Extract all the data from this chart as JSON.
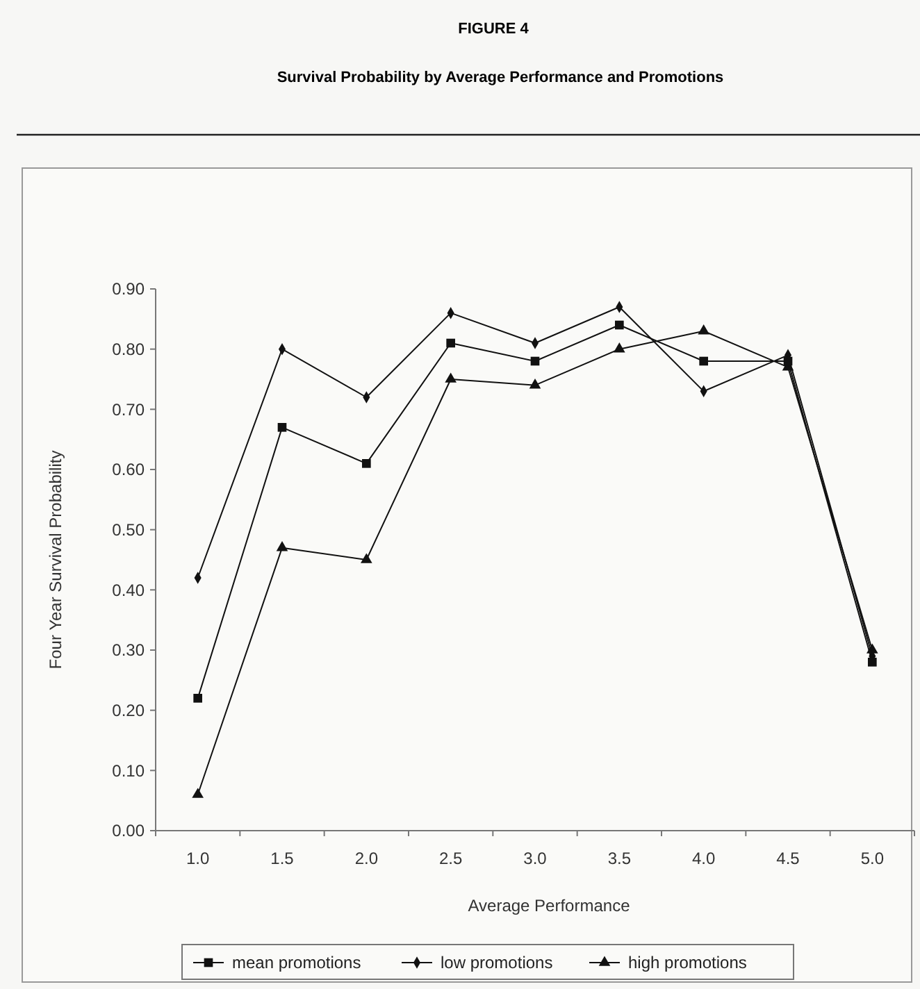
{
  "chart_data": {
    "type": "line",
    "title": "FIGURE 4",
    "subtitle": "Survival Probability by Average Performance and Promotions",
    "xlabel": "Average Performance",
    "ylabel": "Four Year Survival Probability",
    "categories": [
      "1.0",
      "1.5",
      "2.0",
      "2.5",
      "3.0",
      "3.5",
      "4.0",
      "4.5",
      "5.0"
    ],
    "ylim": [
      0,
      0.9
    ],
    "yticks": [
      {
        "value": 0,
        "label": "0.00"
      },
      {
        "value": 0.1,
        "label": "0.10"
      },
      {
        "value": 0.2,
        "label": "0.20"
      },
      {
        "value": 0.3,
        "label": "0.30"
      },
      {
        "value": 0.4,
        "label": "0.40"
      },
      {
        "value": 0.5,
        "label": "0.50"
      },
      {
        "value": 0.6,
        "label": "0.60"
      },
      {
        "value": 0.7,
        "label": "0.70"
      },
      {
        "value": 0.8,
        "label": "0.80"
      },
      {
        "value": 0.9,
        "label": "0.90"
      }
    ],
    "grid": false,
    "legend": "bottom",
    "line_style": "solid",
    "series": [
      {
        "name": "mean promotions",
        "color": "#111111",
        "marker": "square",
        "values": [
          0.22,
          0.67,
          0.61,
          0.81,
          0.78,
          0.84,
          0.78,
          0.78,
          0.28
        ]
      },
      {
        "name": "low promotions",
        "color": "#111111",
        "marker": "diamond",
        "values": [
          0.42,
          0.8,
          0.72,
          0.86,
          0.81,
          0.87,
          0.73,
          0.79,
          0.29
        ]
      },
      {
        "name": "high promotions",
        "color": "#111111",
        "marker": "triangle",
        "values": [
          0.06,
          0.47,
          0.45,
          0.75,
          0.74,
          0.8,
          0.83,
          0.77,
          0.3
        ]
      }
    ]
  }
}
